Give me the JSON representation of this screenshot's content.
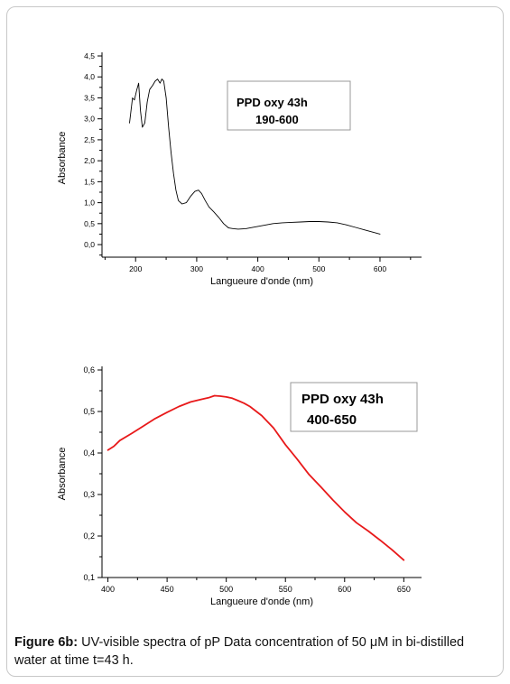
{
  "chart_data": [
    {
      "type": "line",
      "xlabel": "Langueure d'onde (nm)",
      "ylabel": "Absorbance",
      "xlim": [
        145,
        668
      ],
      "ylim": [
        -0.3,
        4.5
      ],
      "x_ticks": [
        "200",
        "300",
        "400",
        "500",
        "600"
      ],
      "y_ticks": [
        "0,0",
        "0,5",
        "1,0",
        "1,5",
        "2,0",
        "2,5",
        "3,0",
        "3,5",
        "4,0",
        "4,5"
      ],
      "annotation": [
        "PPD oxy 43h",
        "190-600"
      ],
      "color": "#000000",
      "series": [
        {
          "x": [
            190,
            195,
            198,
            202,
            205,
            208,
            211,
            215,
            219,
            223,
            228,
            232,
            236,
            240,
            243,
            246,
            250,
            254,
            258,
            262,
            266,
            270,
            276,
            283,
            290,
            297,
            303,
            308,
            314,
            320,
            328,
            336,
            344,
            352,
            360,
            368,
            380,
            395,
            410,
            425,
            440,
            455,
            470,
            485,
            500,
            515,
            530,
            545,
            560,
            575,
            590,
            600
          ],
          "y": [
            2.9,
            3.5,
            3.45,
            3.7,
            3.85,
            3.2,
            2.8,
            2.9,
            3.4,
            3.7,
            3.8,
            3.9,
            3.95,
            3.85,
            3.95,
            3.9,
            3.5,
            2.8,
            2.2,
            1.7,
            1.3,
            1.05,
            0.97,
            1.0,
            1.15,
            1.27,
            1.3,
            1.22,
            1.05,
            0.9,
            0.78,
            0.65,
            0.5,
            0.4,
            0.38,
            0.37,
            0.38,
            0.42,
            0.46,
            0.5,
            0.52,
            0.53,
            0.54,
            0.55,
            0.55,
            0.54,
            0.52,
            0.47,
            0.41,
            0.35,
            0.29,
            0.25
          ]
        }
      ]
    },
    {
      "type": "line",
      "xlabel": "Langueure d'onde (nm)",
      "ylabel": "Absorbance",
      "xlim": [
        395,
        665
      ],
      "ylim": [
        0.1,
        0.6
      ],
      "x_ticks": [
        "400",
        "450",
        "500",
        "550",
        "600",
        "650"
      ],
      "y_ticks": [
        "0,1",
        "0,2",
        "0,3",
        "0,4",
        "0,5",
        "0,6"
      ],
      "annotation": [
        "PPD oxy 43h",
        "400-650"
      ],
      "color": "#e8191a",
      "series": [
        {
          "x": [
            400,
            405,
            410,
            420,
            430,
            440,
            450,
            460,
            470,
            480,
            485,
            490,
            495,
            500,
            505,
            510,
            515,
            520,
            530,
            540,
            550,
            560,
            570,
            580,
            590,
            600,
            610,
            620,
            630,
            640,
            650
          ],
          "y": [
            0.407,
            0.416,
            0.43,
            0.447,
            0.465,
            0.483,
            0.498,
            0.512,
            0.523,
            0.53,
            0.533,
            0.538,
            0.537,
            0.535,
            0.532,
            0.526,
            0.52,
            0.512,
            0.49,
            0.46,
            0.42,
            0.385,
            0.348,
            0.318,
            0.287,
            0.258,
            0.232,
            0.212,
            0.19,
            0.167,
            0.142
          ]
        }
      ]
    }
  ],
  "caption": {
    "label": "Figure 6b:",
    "text": "UV-visible spectra of pP Data concentration of 50 μM in bi-distilled water at time t=43 h."
  }
}
